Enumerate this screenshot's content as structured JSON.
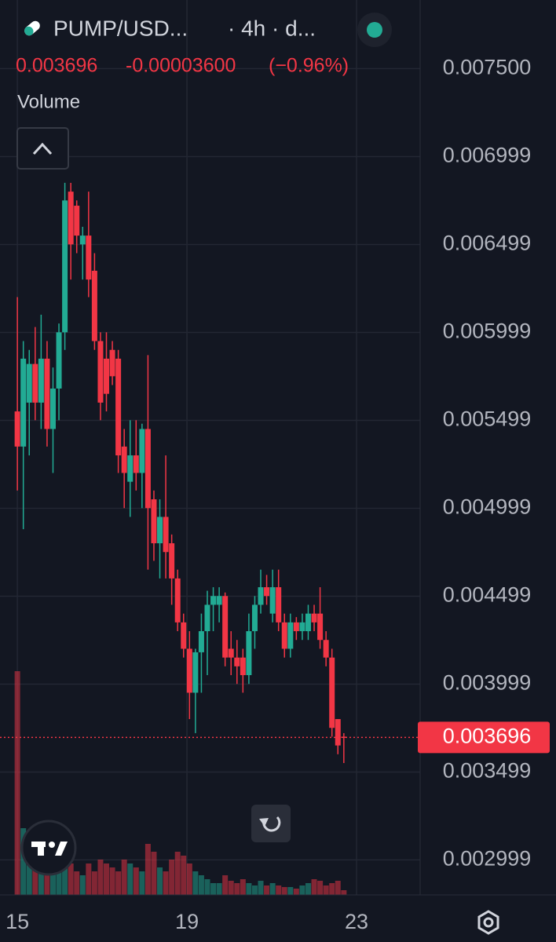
{
  "header": {
    "symbol": "PUMP/USD...",
    "interval": "· 4h · d...",
    "change": "-0.00003600",
    "change_pct": "(−0.96%)",
    "pane_label": "Volume"
  },
  "chart_data": {
    "type": "candlestick",
    "x": [
      15,
      15.14,
      15.28,
      15.42,
      15.56,
      15.7,
      15.84,
      15.98,
      16.12,
      16.26,
      16.4,
      16.54,
      16.68,
      16.82,
      16.96,
      17.1,
      17.24,
      17.38,
      17.52,
      17.66,
      17.8,
      17.94,
      18.08,
      18.22,
      18.36,
      18.5,
      18.64,
      18.78,
      18.92,
      19.06,
      19.2,
      19.34,
      19.48,
      19.62,
      19.76,
      19.9,
      20.04,
      20.18,
      20.32,
      20.46,
      20.6,
      20.74,
      20.88,
      21.02,
      21.16,
      21.3,
      21.44,
      21.58,
      21.72,
      21.86,
      22,
      22.14,
      22.28,
      22.42,
      22.56,
      22.7
    ],
    "open": [
      0.00555,
      0.00535,
      0.0056,
      0.00582,
      0.0056,
      0.00585,
      0.00545,
      0.00568,
      0.006,
      0.0068,
      0.00672,
      0.0065,
      0.00655,
      0.00635,
      0.00595,
      0.00585,
      0.0059,
      0.00585,
      0.00535,
      0.00515,
      0.0053,
      0.0052,
      0.00545,
      0.00505,
      0.0048,
      0.00495,
      0.0048,
      0.0046,
      0.00435,
      0.0042,
      0.00395,
      0.00418,
      0.0043,
      0.00445,
      0.00445,
      0.0045,
      0.0042,
      0.00415,
      0.00415,
      0.00405,
      0.0043,
      0.00445,
      0.00455,
      0.0044,
      0.00455,
      0.00435,
      0.0042,
      0.00435,
      0.0043,
      0.0043,
      0.0044,
      0.0044,
      0.00425,
      0.00415,
      0.0038,
      0.0037
    ],
    "high": [
      0.0062,
      0.00595,
      0.0059,
      0.00603,
      0.0061,
      0.00595,
      0.0058,
      0.00605,
      0.00685,
      0.00685,
      0.00675,
      0.0066,
      0.0068,
      0.00645,
      0.006,
      0.006,
      0.00595,
      0.0059,
      0.00545,
      0.0055,
      0.0055,
      0.00548,
      0.00587,
      0.0051,
      0.00505,
      0.0053,
      0.00485,
      0.00465,
      0.0044,
      0.0043,
      0.0042,
      0.0044,
      0.00453,
      0.00455,
      0.00455,
      0.00452,
      0.0043,
      0.00425,
      0.0042,
      0.0044,
      0.0045,
      0.00465,
      0.00462,
      0.00465,
      0.00465,
      0.0044,
      0.0044,
      0.00438,
      0.0044,
      0.00445,
      0.00445,
      0.00455,
      0.0043,
      0.0042,
      0.0038,
      0.00372
    ],
    "low": [
      0.0051,
      0.00488,
      0.0053,
      0.0055,
      0.00545,
      0.00535,
      0.0052,
      0.0055,
      0.0059,
      0.0063,
      0.00645,
      0.0063,
      0.0062,
      0.0059,
      0.0055,
      0.00555,
      0.0057,
      0.0052,
      0.005,
      0.00495,
      0.0051,
      0.005,
      0.00465,
      0.0047,
      0.0046,
      0.0046,
      0.00445,
      0.0043,
      0.00415,
      0.0038,
      0.00372,
      0.00395,
      0.00405,
      0.0043,
      0.00435,
      0.0041,
      0.00405,
      0.004,
      0.00395,
      0.004,
      0.0042,
      0.0044,
      0.00445,
      0.00435,
      0.0043,
      0.00415,
      0.00415,
      0.00425,
      0.00425,
      0.00425,
      0.0043,
      0.0042,
      0.0041,
      0.0037,
      0.0036,
      0.00355
    ],
    "close": [
      0.00535,
      0.00585,
      0.00582,
      0.0056,
      0.00585,
      0.00545,
      0.00568,
      0.006,
      0.00675,
      0.0065,
      0.00655,
      0.00655,
      0.0063,
      0.00595,
      0.0056,
      0.00565,
      0.00575,
      0.0053,
      0.0052,
      0.0053,
      0.0052,
      0.00545,
      0.005,
      0.0048,
      0.00495,
      0.00475,
      0.0046,
      0.00435,
      0.0042,
      0.00395,
      0.00418,
      0.0043,
      0.00445,
      0.0045,
      0.0045,
      0.00415,
      0.00415,
      0.0041,
      0.00405,
      0.0043,
      0.00445,
      0.00455,
      0.0045,
      0.00455,
      0.00435,
      0.0042,
      0.00435,
      0.0043,
      0.00435,
      0.0044,
      0.00435,
      0.00425,
      0.00415,
      0.00375,
      0.00365,
      0.003696
    ],
    "volume": [
      285,
      85,
      65,
      40,
      50,
      35,
      30,
      40,
      45,
      40,
      30,
      25,
      40,
      30,
      45,
      40,
      35,
      30,
      45,
      40,
      35,
      30,
      65,
      55,
      35,
      30,
      45,
      55,
      50,
      40,
      30,
      25,
      20,
      15,
      15,
      25,
      18,
      15,
      20,
      15,
      12,
      18,
      12,
      15,
      12,
      10,
      10,
      8,
      12,
      15,
      20,
      18,
      12,
      15,
      18,
      6
    ],
    "volume_lim": [
      0,
      300
    ],
    "up_color": "#22ab94",
    "down_color": "#f23645",
    "last_price": 0.003696,
    "ylim": [
      0.0028,
      0.00789
    ],
    "yticks": [
      {
        "value": 0.0075,
        "label": "0.007500"
      },
      0.006999,
      0.006499,
      0.005999,
      0.005499,
      0.004999,
      0.004499,
      0.003999,
      0.003499,
      0.002999
    ],
    "xlim": [
      14.59,
      24.5
    ],
    "xticks": [
      15,
      19,
      23
    ],
    "grid": true
  }
}
